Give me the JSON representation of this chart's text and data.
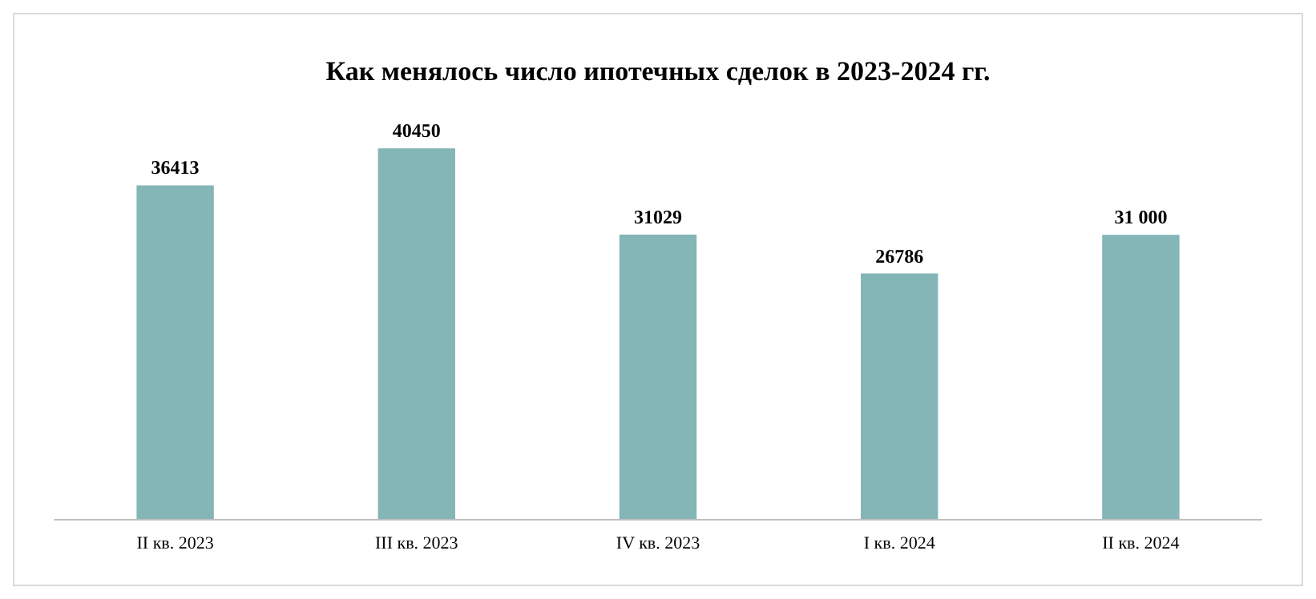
{
  "chart_data": {
    "type": "bar",
    "title": "Как менялось число ипотечных сделок в 2023-2024 гг.",
    "categories": [
      "II кв. 2023",
      "III кв. 2023",
      "IV кв. 2023",
      "I кв. 2024",
      "II кв. 2024"
    ],
    "values": [
      36413,
      40450,
      31029,
      26786,
      31000
    ],
    "value_labels": [
      "36413",
      "40450",
      "31029",
      "26786",
      "31 000"
    ],
    "color": "#84b5b7"
  }
}
